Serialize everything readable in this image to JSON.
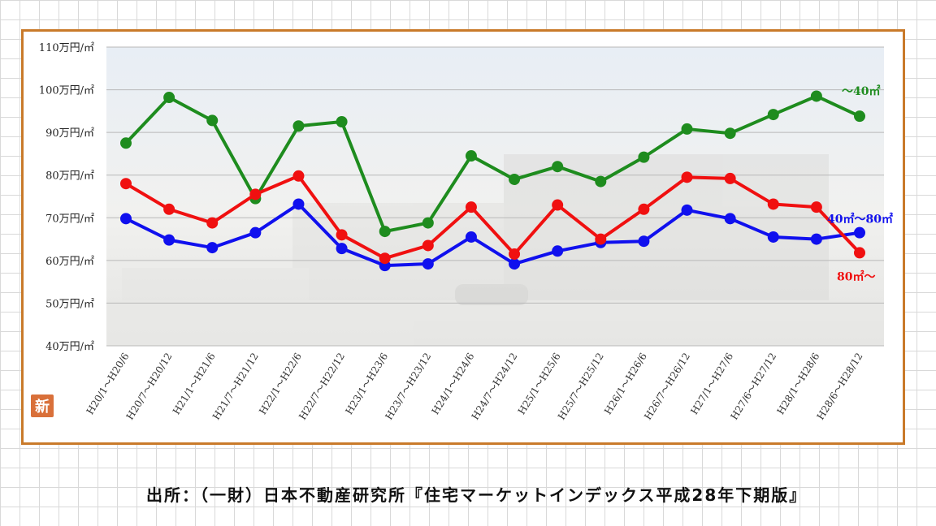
{
  "colors": {
    "frame": "#c97a2a",
    "green": "#1e8c1e",
    "red": "#f01010",
    "blue": "#1010ee",
    "badge": "#d9703a"
  },
  "badge_label": "新",
  "source_text": "出所：（一財）日本不動産研究所『住宅マーケットインデックス平成28年下期版』",
  "chart_data": {
    "type": "line",
    "title": "",
    "xlabel": "",
    "ylabel": "",
    "ylim": [
      40,
      110
    ],
    "y_ticks": [
      {
        "value": 40,
        "label": "40万円/㎡"
      },
      {
        "value": 50,
        "label": "50万円/㎡"
      },
      {
        "value": 60,
        "label": "60万円/㎡"
      },
      {
        "value": 70,
        "label": "70万円/㎡"
      },
      {
        "value": 80,
        "label": "80万円/㎡"
      },
      {
        "value": 90,
        "label": "90万円/㎡"
      },
      {
        "value": 100,
        "label": "100万円/㎡"
      },
      {
        "value": 110,
        "label": "110万円/㎡"
      }
    ],
    "grid": true,
    "categories": [
      "H20/1～H20/6",
      "H20/7～H20/12",
      "H21/1～H21/6",
      "H21/7～H21/12",
      "H22/1～H22/6",
      "H22/7～H22/12",
      "H23/1～H23/6",
      "H23/7～H23/12",
      "H24/1～H24/6",
      "H24/7～H24/12",
      "H25/1～H25/6",
      "H25/7～H25/12",
      "H26/1～H26/6",
      "H26/7～H26/12",
      "H27/1～H27/6",
      "H27/6～H27/12",
      "H28/1～H28/6",
      "H28/6～H28/12"
    ],
    "series": [
      {
        "name": "～40㎡",
        "color": "#1e8c1e",
        "label_position": "top-right",
        "values": [
          87.5,
          98.2,
          92.8,
          74.5,
          91.5,
          92.5,
          66.8,
          68.8,
          84.5,
          79.0,
          82.0,
          78.5,
          84.2,
          90.8,
          89.8,
          94.2,
          98.5,
          93.8
        ]
      },
      {
        "name": "40㎡～80㎡",
        "color": "#1010ee",
        "label_position": "right",
        "values": [
          69.8,
          64.8,
          63.0,
          66.5,
          73.2,
          62.8,
          58.8,
          59.2,
          65.5,
          59.2,
          62.2,
          64.2,
          64.5,
          71.8,
          69.8,
          65.5,
          65.0,
          66.5
        ]
      },
      {
        "name": "80㎡～",
        "color": "#f01010",
        "label_position": "bottom-right",
        "values": [
          78.0,
          72.0,
          68.8,
          75.5,
          79.8,
          66.0,
          60.5,
          63.5,
          72.5,
          61.5,
          73.0,
          65.0,
          72.0,
          79.5,
          79.2,
          73.2,
          72.5,
          61.8
        ]
      }
    ]
  }
}
